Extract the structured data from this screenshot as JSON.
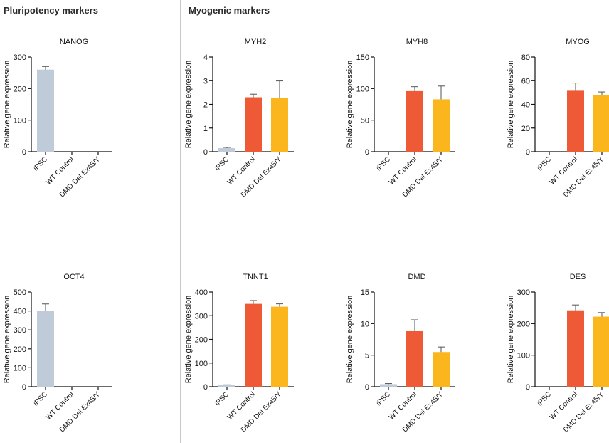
{
  "sections": {
    "left_title": "Pluripotency markers",
    "right_title": "Myogenic markers"
  },
  "colors": {
    "iPSC": "#bfcbd9",
    "WT Control": "#ee5a35",
    "DMD Del Ex45/Y": "#fbb61e",
    "axis": "#111111"
  },
  "chart_data": [
    {
      "type": "bar",
      "title": "NANOG",
      "ylabel": "Relative gene expression",
      "categories": [
        "iPSC",
        "WT Control",
        "DMD Del Ex45/Y"
      ],
      "values": [
        260,
        0,
        0
      ],
      "errors": [
        10,
        0,
        0
      ],
      "ylim": [
        0,
        300
      ],
      "yticks": [
        0,
        100,
        200,
        300
      ]
    },
    {
      "type": "bar",
      "title": "MYH2",
      "ylabel": "Relative gene expression",
      "categories": [
        "iPSC",
        "WT Control",
        "DMD Del Ex45/Y"
      ],
      "values": [
        0.15,
        2.3,
        2.27
      ],
      "errors": [
        0.03,
        0.13,
        0.72
      ],
      "ylim": [
        0,
        4
      ],
      "yticks": [
        0,
        1,
        2,
        3,
        4
      ]
    },
    {
      "type": "bar",
      "title": "MYH8",
      "ylabel": "Relative gene expression",
      "categories": [
        "iPSC",
        "WT Control",
        "DMD Del Ex45/Y"
      ],
      "values": [
        0,
        96,
        83
      ],
      "errors": [
        0,
        7,
        21
      ],
      "ylim": [
        0,
        150
      ],
      "yticks": [
        0,
        50,
        100,
        150
      ]
    },
    {
      "type": "bar",
      "title": "MYOG",
      "ylabel": "Relative gene expression",
      "categories": [
        "iPSC",
        "WT Control",
        "DMD Del Ex45/Y"
      ],
      "values": [
        0,
        51.5,
        48
      ],
      "errors": [
        0,
        6.5,
        2.5
      ],
      "ylim": [
        0,
        80
      ],
      "yticks": [
        0,
        20,
        40,
        60,
        80
      ]
    },
    {
      "type": "bar",
      "title": "OCT4",
      "ylabel": "Relative gene expression",
      "categories": [
        "iPSC",
        "WT Control",
        "DMD Del Ex45/Y"
      ],
      "values": [
        402,
        0,
        0
      ],
      "errors": [
        35,
        0,
        0
      ],
      "ylim": [
        0,
        500
      ],
      "yticks": [
        0,
        100,
        200,
        300,
        400,
        500
      ]
    },
    {
      "type": "bar",
      "title": "TNNT1",
      "ylabel": "Relative gene expression",
      "categories": [
        "iPSC",
        "WT Control",
        "DMD Del Ex45/Y"
      ],
      "values": [
        6,
        350,
        338
      ],
      "errors": [
        2,
        14,
        12
      ],
      "ylim": [
        0,
        400
      ],
      "yticks": [
        0,
        100,
        200,
        300,
        400
      ]
    },
    {
      "type": "bar",
      "title": "DMD",
      "ylabel": "Relative gene expression",
      "categories": [
        "iPSC",
        "WT Control",
        "DMD Del Ex45/Y"
      ],
      "values": [
        0.4,
        8.8,
        5.5
      ],
      "errors": [
        0.1,
        1.8,
        0.8
      ],
      "ylim": [
        0,
        15
      ],
      "yticks": [
        0,
        5,
        10,
        15
      ]
    },
    {
      "type": "bar",
      "title": "DES",
      "ylabel": "Relative gene expression",
      "categories": [
        "iPSC",
        "WT Control",
        "DMD Del Ex45/Y"
      ],
      "values": [
        0,
        242,
        222
      ],
      "errors": [
        0,
        17,
        13
      ],
      "ylim": [
        0,
        300
      ],
      "yticks": [
        0,
        100,
        200,
        300
      ]
    }
  ]
}
